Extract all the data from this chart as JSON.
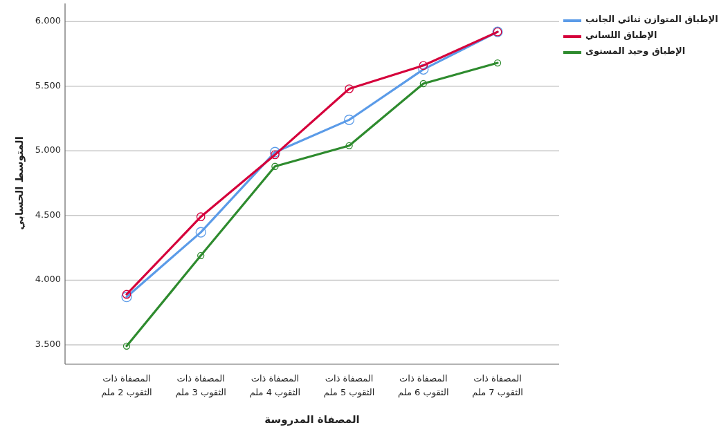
{
  "chart_data": {
    "type": "line",
    "xlabel": "المصفاة المدروسة",
    "ylabel": "المتوسط الحسابي",
    "categories": [
      "المصفاة ذات الثقوب 2 ملم",
      "المصفاة ذات الثقوب 3 ملم",
      "المصفاة ذات الثقوب 4 ملم",
      "المصفاة ذات الثقوب 5 ملم",
      "المصفاة ذات الثقوب 6 ملم",
      "المصفاة ذات الثقوب 7 ملم"
    ],
    "series": [
      {
        "name": "الإطباق المتوازن ثنائي الجانب",
        "color": "#5b9be8",
        "values": [
          3.87,
          4.37,
          4.99,
          5.24,
          5.63,
          5.92
        ]
      },
      {
        "name": "الإطباق اللساني",
        "color": "#d5003b",
        "values": [
          3.89,
          4.49,
          4.97,
          5.48,
          5.66,
          5.92
        ]
      },
      {
        "name": "الإطباق وحيد المستوى",
        "color": "#2e8b2e",
        "values": [
          3.49,
          4.19,
          4.88,
          5.04,
          5.52,
          5.68
        ]
      }
    ],
    "ylim": [
      3.35,
      6.14
    ],
    "yticks": [
      {
        "value": 3.5,
        "label": "3.500"
      },
      {
        "value": 4,
        "label": "4.000"
      },
      {
        "value": 4.5,
        "label": "4.500"
      },
      {
        "value": 5,
        "label": "5.000"
      },
      {
        "value": 5.5,
        "label": "5.500"
      },
      {
        "value": 6,
        "label": "6.000"
      }
    ],
    "grid": "y",
    "legend": "right",
    "marker": "circle",
    "line_style": "solid"
  }
}
